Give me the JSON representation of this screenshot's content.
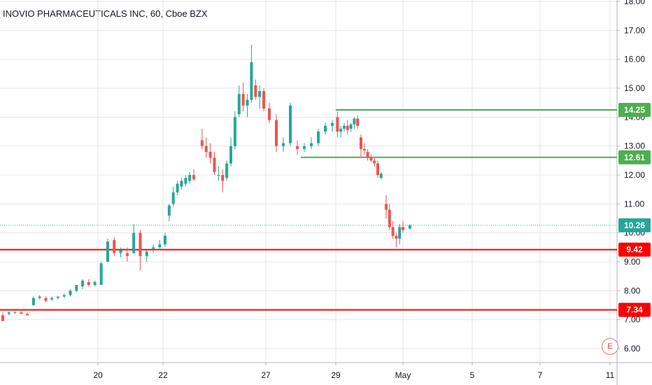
{
  "chart_data": {
    "type": "candlestick",
    "title": "INOVIO PHARMACEUTICALS INC, 60, Cboe BZX",
    "colors": {
      "up": "#26a69a",
      "down": "#ef5350",
      "support": "#ff0000",
      "resistance": "#4caf50",
      "last": "#26a69a",
      "grid": "#e6e6e6",
      "axis": "#131722"
    },
    "y_axis": {
      "ticks": [
        "6.00",
        "7.00",
        "8.00",
        "9.00",
        "10.00",
        "11.00",
        "12.00",
        "13.00",
        "14.00",
        "15.00",
        "16.00",
        "17.00",
        "18.00"
      ],
      "range": [
        5.6,
        18.0
      ]
    },
    "x_axis": {
      "ticks": [
        "20",
        "22",
        "27",
        "29",
        "May",
        "5",
        "7",
        "11"
      ]
    },
    "horizontal_lines": [
      {
        "price": 14.25,
        "label": "14.25",
        "color": "#4caf50",
        "start_x": 29.0
      },
      {
        "price": 12.61,
        "label": "12.61",
        "color": "#4caf50",
        "start_x": 28.0
      },
      {
        "price": 9.42,
        "label": "9.42",
        "color": "#ff0000",
        "start_x": 0
      },
      {
        "price": 7.34,
        "label": "7.34",
        "color": "#ff0000",
        "start_x": 0
      }
    ],
    "last_price": {
      "price": 10.26,
      "label": "10.26"
    },
    "earnings_marker": "E",
    "candles": [
      [
        16.9,
        7.15,
        7.25,
        6.95,
        6.95
      ],
      [
        17.1,
        7.2,
        7.3,
        7.15,
        7.25
      ],
      [
        17.3,
        7.25,
        7.3,
        7.2,
        7.25
      ],
      [
        17.5,
        7.25,
        7.3,
        7.2,
        7.2
      ],
      [
        17.7,
        7.2,
        7.25,
        7.15,
        7.15
      ],
      [
        17.9,
        7.5,
        7.8,
        7.5,
        7.75
      ],
      [
        18.1,
        7.75,
        7.85,
        7.7,
        7.8
      ],
      [
        18.3,
        7.75,
        7.8,
        7.6,
        7.65
      ],
      [
        18.5,
        7.7,
        7.8,
        7.65,
        7.75
      ],
      [
        18.7,
        7.75,
        7.8,
        7.7,
        7.8
      ],
      [
        18.9,
        7.8,
        7.9,
        7.75,
        7.85
      ],
      [
        19.1,
        7.85,
        8.05,
        7.8,
        8.0
      ],
      [
        19.3,
        8.0,
        8.2,
        7.95,
        8.2
      ],
      [
        19.5,
        8.15,
        8.4,
        8.05,
        8.35
      ],
      [
        19.7,
        8.3,
        8.4,
        8.15,
        8.2
      ],
      [
        19.9,
        8.2,
        8.35,
        8.15,
        8.3
      ],
      [
        20.1,
        8.2,
        9.0,
        8.2,
        8.95
      ],
      [
        20.3,
        9.0,
        9.8,
        9.0,
        9.7
      ],
      [
        20.5,
        9.75,
        9.85,
        9.2,
        9.3
      ],
      [
        20.7,
        9.3,
        9.5,
        9.15,
        9.4
      ],
      [
        20.9,
        9.3,
        9.5,
        9.0,
        9.2
      ],
      [
        21.1,
        9.3,
        10.3,
        9.3,
        10.0
      ],
      [
        21.3,
        10.0,
        10.1,
        8.7,
        9.2
      ],
      [
        21.5,
        9.2,
        9.4,
        9.0,
        9.35
      ],
      [
        21.7,
        9.45,
        9.6,
        9.3,
        9.5
      ],
      [
        21.9,
        9.5,
        9.75,
        9.4,
        9.6
      ],
      [
        22.1,
        9.6,
        10.0,
        9.5,
        9.9
      ],
      [
        22.3,
        10.6,
        11.0,
        10.4,
        10.95
      ],
      [
        22.5,
        11.0,
        11.6,
        10.9,
        11.4
      ],
      [
        22.7,
        11.4,
        11.8,
        11.3,
        11.7
      ],
      [
        22.9,
        11.6,
        11.9,
        11.5,
        11.8
      ],
      [
        23.1,
        11.7,
        12.0,
        11.6,
        11.9
      ],
      [
        23.3,
        11.8,
        12.1,
        11.7,
        12.0
      ],
      [
        23.5,
        12.0,
        12.2,
        11.8,
        11.85
      ],
      [
        23.9,
        13.2,
        13.6,
        12.9,
        13.0
      ],
      [
        24.1,
        13.0,
        13.3,
        12.6,
        12.8
      ],
      [
        24.3,
        12.8,
        13.1,
        12.4,
        12.6
      ],
      [
        24.5,
        12.6,
        12.8,
        12.0,
        12.1
      ],
      [
        24.7,
        12.0,
        12.3,
        11.8,
        12.0
      ],
      [
        24.9,
        12.0,
        12.2,
        11.4,
        11.8
      ],
      [
        25.1,
        11.9,
        12.5,
        11.8,
        12.4
      ],
      [
        25.3,
        12.4,
        13.3,
        12.3,
        13.0
      ],
      [
        25.5,
        13.0,
        14.2,
        12.9,
        14.0
      ],
      [
        25.7,
        14.1,
        15.1,
        14.0,
        14.8
      ],
      [
        25.9,
        14.8,
        15.2,
        14.2,
        14.4
      ],
      [
        26.1,
        14.4,
        14.8,
        14.0,
        14.6
      ],
      [
        26.3,
        14.6,
        16.5,
        14.5,
        15.9
      ],
      [
        26.5,
        15.1,
        15.3,
        14.6,
        14.7
      ],
      [
        26.7,
        14.7,
        15.1,
        14.3,
        14.9
      ],
      [
        26.9,
        14.9,
        15.0,
        14.2,
        14.3
      ],
      [
        27.1,
        14.3,
        14.5,
        13.8,
        13.9
      ],
      [
        27.3,
        13.9,
        14.1,
        12.8,
        13.0
      ],
      [
        27.5,
        13.0,
        13.3,
        12.8,
        13.1
      ],
      [
        27.7,
        13.1,
        14.5,
        13.0,
        14.4
      ],
      [
        27.9,
        13.0,
        13.2,
        12.7,
        12.9
      ],
      [
        28.1,
        12.9,
        13.1,
        12.8,
        13.0
      ],
      [
        28.3,
        13.0,
        13.3,
        12.9,
        13.1
      ],
      [
        28.5,
        13.1,
        13.6,
        13.0,
        13.5
      ],
      [
        28.7,
        13.5,
        13.8,
        13.4,
        13.7
      ],
      [
        28.9,
        13.7,
        13.9,
        13.5,
        13.8
      ],
      [
        29.1,
        14.0,
        14.2,
        13.3,
        13.5
      ],
      [
        29.3,
        13.5,
        13.7,
        13.3,
        13.6
      ],
      [
        29.5,
        13.6,
        13.8,
        13.5,
        13.7
      ],
      [
        29.7,
        13.7,
        13.9,
        13.4,
        13.55
      ],
      [
        29.9,
        13.6,
        13.8,
        13.5,
        13.75
      ],
      [
        30.1,
        13.75,
        14.0,
        13.6,
        13.95
      ],
      [
        30.3,
        13.95,
        14.05,
        13.6,
        13.7
      ],
      [
        30.5,
        13.3,
        13.4,
        12.6,
        12.9
      ],
      [
        30.7,
        12.9,
        13.1,
        12.7,
        12.85
      ],
      [
        30.9,
        12.8,
        12.9,
        12.5,
        12.6
      ],
      [
        31.1,
        12.6,
        12.7,
        12.45,
        12.5
      ],
      [
        31.3,
        12.5,
        12.6,
        12.3,
        12.4
      ],
      [
        31.5,
        12.4,
        12.5,
        11.9,
        12.0
      ],
      [
        31.7,
        11.9,
        12.1,
        11.85,
        12.05
      ],
      [
        32.0,
        11.0,
        11.3,
        10.5,
        10.8
      ],
      [
        32.2,
        10.8,
        11.0,
        10.1,
        10.2
      ],
      [
        32.4,
        10.2,
        10.4,
        9.8,
        9.9
      ],
      [
        32.6,
        9.9,
        10.0,
        9.5,
        9.8
      ],
      [
        32.8,
        9.8,
        10.3,
        9.6,
        10.2
      ],
      [
        33.0,
        10.2,
        10.4,
        10.0,
        10.1
      ],
      [
        33.2,
        10.15,
        10.3,
        10.1,
        10.26
      ]
    ]
  }
}
